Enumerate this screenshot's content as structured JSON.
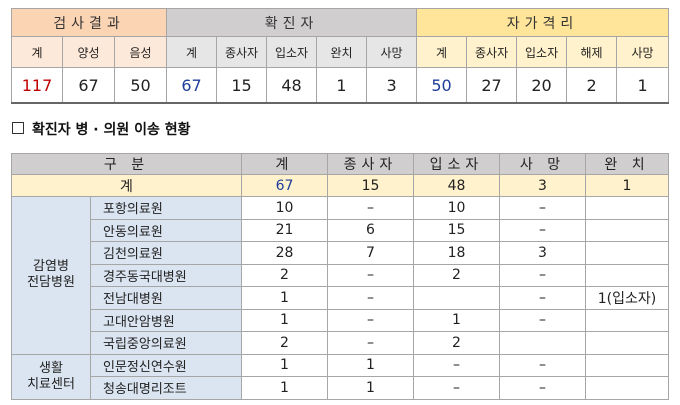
{
  "summary": {
    "groups": [
      {
        "label": "검사결과",
        "subs": [
          "계",
          "양성",
          "음성"
        ],
        "values": [
          "117",
          "67",
          "50"
        ]
      },
      {
        "label": "확진자",
        "subs": [
          "계",
          "종사자",
          "입소자",
          "완치",
          "사망"
        ],
        "values": [
          "67",
          "15",
          "48",
          "1",
          "3"
        ]
      },
      {
        "label": "자가격리",
        "subs": [
          "계",
          "종사자",
          "입소자",
          "해제",
          "사망"
        ],
        "values": [
          "50",
          "27",
          "20",
          "2",
          "1"
        ]
      }
    ]
  },
  "section_title": "확진자 병 · 의원 이송 현황",
  "transfer": {
    "headers": [
      "구 분",
      "계",
      "종사자",
      "입소자",
      "사 망",
      "완 치"
    ],
    "total": {
      "label": "계",
      "values": [
        "67",
        "15",
        "48",
        "3",
        "1"
      ]
    },
    "categories": [
      {
        "label": "감염병\n전담병원",
        "rows": [
          {
            "name": "포항의료원",
            "values": [
              "10",
              "–",
              "10",
              "–",
              ""
            ]
          },
          {
            "name": "안동의료원",
            "values": [
              "21",
              "6",
              "15",
              "–",
              ""
            ]
          },
          {
            "name": "김천의료원",
            "values": [
              "28",
              "7",
              "18",
              "3",
              ""
            ]
          },
          {
            "name": "경주동국대병원",
            "values": [
              "2",
              "–",
              "2",
              "–",
              ""
            ]
          },
          {
            "name": "전남대병원",
            "values": [
              "1",
              "–",
              "",
              "–",
              "1(입소자)"
            ]
          },
          {
            "name": "고대안암병원",
            "values": [
              "1",
              "–",
              "1",
              "–",
              ""
            ]
          },
          {
            "name": "국립중앙의료원",
            "values": [
              "2",
              "–",
              "2",
              "",
              ""
            ]
          }
        ]
      },
      {
        "label": "생활\n치료센터",
        "rows": [
          {
            "name": "인문정신연수원",
            "values": [
              "1",
              "1",
              "–",
              "–",
              ""
            ]
          },
          {
            "name": "청송대명리조트",
            "values": [
              "1",
              "1",
              "–",
              "–",
              ""
            ]
          }
        ]
      }
    ]
  }
}
